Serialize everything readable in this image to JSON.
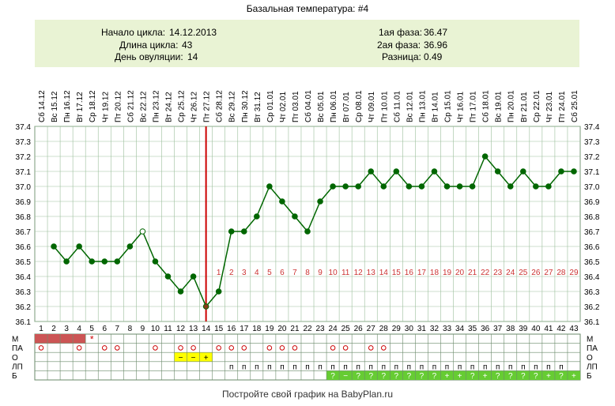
{
  "chart_data": {
    "type": "line",
    "title": "Базальная температура: #4",
    "footer": "Постройте свой график на BabyPlan.ru",
    "info": {
      "cycle_start_label": "Начало цикла:",
      "cycle_start": "14.12.2013",
      "cycle_length_label": "Длина цикла:",
      "cycle_length": "43",
      "ovulation_day_label": "День овуляции:",
      "ovulation_day": "14",
      "phase1_label": "1ая фаза:",
      "phase1": "36.47",
      "phase2_label": "2ая фаза:",
      "phase2": "36.96",
      "diff_label": "Разница:",
      "diff": "0.49"
    },
    "ylim": [
      36.1,
      37.4
    ],
    "yticks": [
      "36.1",
      "36.2",
      "36.3",
      "36.4",
      "36.5",
      "36.6",
      "36.7",
      "36.8",
      "36.9",
      "37.0",
      "37.1",
      "37.2",
      "37.3",
      "37.4"
    ],
    "dates": [
      "Сб 14.12",
      "Вс 15.12",
      "Пн 16.12",
      "Вт 17.12",
      "Ср 18.12",
      "Чт 19.12",
      "Пт 20.12",
      "Сб 21.12",
      "Вс 22.12",
      "Пн 23.12",
      "Вт 24.12",
      "Ср 25.12",
      "Чт 26.12",
      "Пт 27.12",
      "Сб 28.12",
      "Вс 29.12",
      "Пн 30.12",
      "Вт 31.12",
      "Ср 01.01",
      "Чт 02.01",
      "Пт 03.01",
      "Сб 04.01",
      "Вс 05.01",
      "Пн 06.01",
      "Вт 07.01",
      "Ср 08.01",
      "Чт 09.01",
      "Пт 10.01",
      "Сб 11.01",
      "Вс 12.01",
      "Пн 13.01",
      "Вт 14.01",
      "Ср 15.01",
      "Чт 16.01",
      "Пт 17.01",
      "Сб 18.01",
      "Вс 19.01",
      "Пн 20.01",
      "Вт 21.01",
      "Ср 22.01",
      "Чт 23.01",
      "Пт 24.01",
      "Сб 25.01"
    ],
    "days": [
      "1",
      "2",
      "3",
      "4",
      "5",
      "6",
      "7",
      "8",
      "9",
      "10",
      "11",
      "12",
      "13",
      "14",
      "15",
      "16",
      "17",
      "18",
      "19",
      "20",
      "21",
      "22",
      "23",
      "24",
      "25",
      "26",
      "27",
      "28",
      "29",
      "30",
      "31",
      "32",
      "33",
      "34",
      "35",
      "36",
      "37",
      "38",
      "39",
      "40",
      "41",
      "42",
      "43"
    ],
    "series": [
      {
        "values": [
          null,
          36.6,
          36.5,
          36.6,
          36.5,
          36.5,
          36.5,
          36.6,
          36.7,
          36.5,
          36.4,
          36.3,
          36.4,
          36.2,
          36.3,
          36.7,
          36.7,
          36.8,
          37.0,
          36.9,
          36.8,
          36.7,
          36.9,
          37.0,
          37.0,
          37.0,
          37.1,
          37.0,
          37.1,
          37.0,
          37.0,
          37.1,
          37.0,
          37.0,
          37.0,
          37.2,
          37.1,
          37.0,
          37.1,
          37.0,
          37.0,
          37.1,
          37.1
        ]
      }
    ],
    "open_points": [
      9
    ],
    "ovulation_day_index": 14,
    "moon_days": [
      14,
      43
    ],
    "post_ovulation_labels": [
      "1",
      "2",
      "3",
      "4",
      "5",
      "6",
      "7",
      "8",
      "9",
      "10",
      "11",
      "12",
      "13",
      "14",
      "15",
      "16",
      "17",
      "18",
      "19",
      "20",
      "21",
      "22",
      "23",
      "24",
      "25",
      "26",
      "27",
      "28",
      "29"
    ],
    "grid": true,
    "colors": {
      "line": "#006600",
      "ovulation": "#cc0000",
      "label": "#cc3333",
      "period": "#cc5555",
      "info_bg": "#e9f3d4",
      "grid": "#9bbf9b",
      "yellow": "#ffff00",
      "green": "#66cc33"
    },
    "rows": [
      {
        "label": "М",
        "cells": {
          "1": "fill",
          "2": "fill",
          "3": "fill",
          "4": "fill",
          "5": "*"
        }
      },
      {
        "label": "ПА",
        "cells": {
          "1": "o",
          "4": "o",
          "6": "o",
          "7": "o",
          "10": "o",
          "12": "o",
          "13": "o",
          "15": "o",
          "16": "o",
          "17": "o",
          "19": "o",
          "20": "o",
          "21": "o",
          "24": "o",
          "25": "o",
          "27": "o",
          "28": "o"
        }
      },
      {
        "label": "О",
        "cells": {
          "12": "−",
          "13": "−",
          "14": "+"
        }
      },
      {
        "label": "ЛП",
        "cells": {
          "16": "п",
          "17": "п",
          "18": "п",
          "19": "п",
          "20": "п",
          "21": "п",
          "22": "п",
          "23": "п",
          "24": "п",
          "25": "п",
          "26": "п",
          "27": "п",
          "28": "п",
          "29": "п",
          "30": "п",
          "31": "п",
          "32": "п",
          "33": "п",
          "34": "п",
          "35": "п",
          "36": "п",
          "37": "п",
          "38": "п",
          "39": "п",
          "40": "п",
          "41": "п",
          "42": "п"
        }
      },
      {
        "label": "Б",
        "cells": {
          "24": "?",
          "25": "−",
          "26": "?",
          "27": "?",
          "28": "?",
          "29": "?",
          "30": "?",
          "31": "?",
          "32": "?",
          "33": "+",
          "34": "+",
          "35": "?",
          "36": "+",
          "37": "?",
          "38": "?",
          "39": "?",
          "40": "?",
          "41": "+",
          "42": "?",
          "43": "+"
        }
      }
    ]
  }
}
